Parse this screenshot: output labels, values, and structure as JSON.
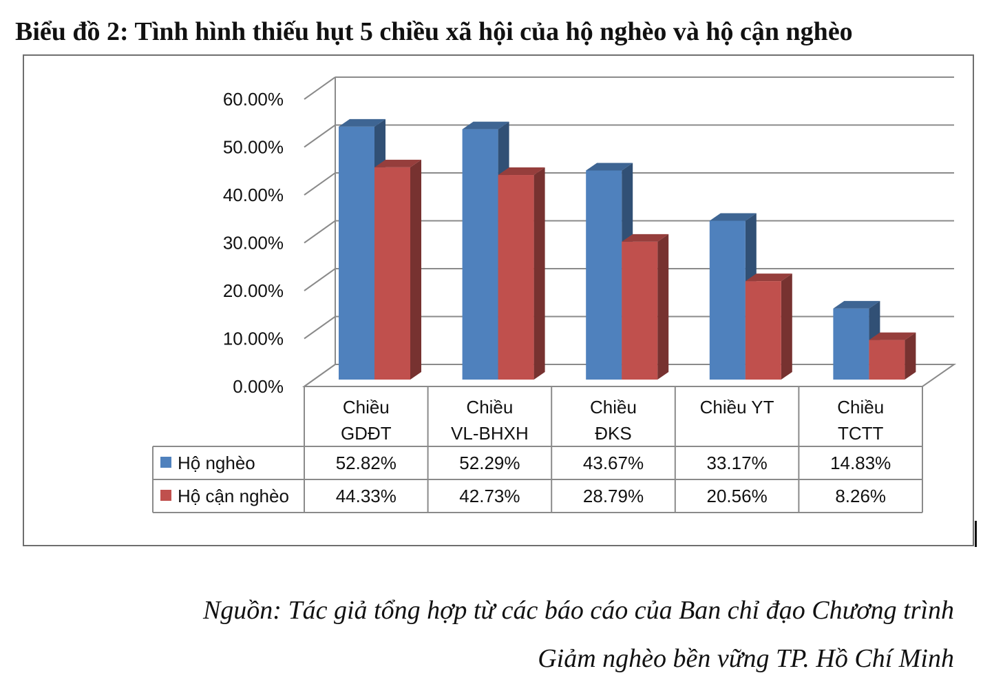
{
  "title": "Biểu đồ 2: Tình hình thiếu hụt 5 chiều xã hội của hộ nghèo và hộ cận nghèo",
  "source": {
    "line1": "Nguồn: Tác giả tổng hợp từ các báo cáo của Ban chỉ đạo Chương trình",
    "line2": "Giảm nghèo bền vững TP. Hồ Chí Minh"
  },
  "chart_data": {
    "type": "bar",
    "style": "3d-clustered-column-with-data-table",
    "categories": [
      [
        "Chiều",
        "GDĐT"
      ],
      [
        "Chiều",
        "VL-BHXH"
      ],
      [
        "Chiều",
        "ĐKS"
      ],
      [
        "Chiều YT"
      ],
      [
        "Chiều",
        "TCTT"
      ]
    ],
    "y_ticks": [
      "0.00%",
      "10.00%",
      "20.00%",
      "30.00%",
      "40.00%",
      "50.00%",
      "60.00%"
    ],
    "ylim": [
      0,
      60
    ],
    "grid": true,
    "series": [
      {
        "name": "Hộ nghèo",
        "color": "#4f81bd",
        "values": [
          52.82,
          52.29,
          43.67,
          33.17,
          14.83
        ],
        "labels": [
          "52.82%",
          "52.29%",
          "43.67%",
          "33.17%",
          "14.83%"
        ]
      },
      {
        "name": "Hộ cận nghèo",
        "color": "#c0504d",
        "values": [
          44.33,
          42.73,
          28.79,
          20.56,
          8.26
        ],
        "labels": [
          "44.33%",
          "42.73%",
          "28.79%",
          "20.56%",
          "8.26%"
        ]
      }
    ]
  }
}
